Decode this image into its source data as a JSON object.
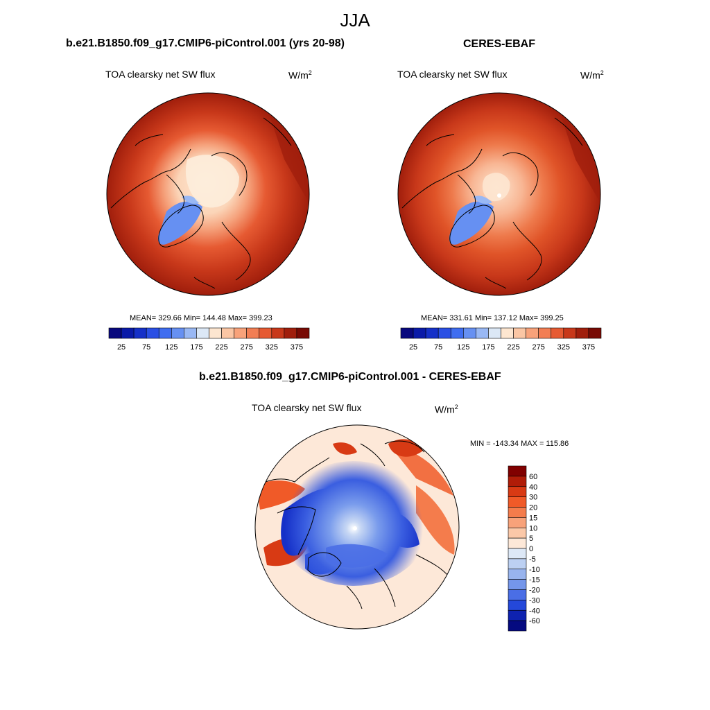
{
  "title": "JJA",
  "panels": [
    {
      "title": "b.e21.B1850.f09_g17.CMIP6-piControl.001 (yrs 20-98)",
      "variable": "TOA clearsky net SW flux",
      "units_base": "W/m",
      "units_exp": "2",
      "stats": "MEAN= 329.66  Min= 144.48  Max= 399.23"
    },
    {
      "title": "CERES-EBAF",
      "variable": "TOA clearsky net SW flux",
      "units_base": "W/m",
      "units_exp": "2",
      "stats": "MEAN= 331.61  Min= 137.12  Max= 399.25"
    },
    {
      "title": "b.e21.B1850.f09_g17.CMIP6-piControl.001 - CERES-EBAF",
      "variable": "TOA clearsky net SW flux",
      "units_base": "W/m",
      "units_exp": "2",
      "stats": "MIN = -143.34 MAX = 115.86"
    }
  ],
  "chart_data": [
    {
      "type": "heatmap",
      "projection": "north polar stereographic",
      "title": "b.e21.B1850.f09_g17.CMIP6-piControl.001 (yrs 20-98)",
      "variable": "TOA clearsky net SW flux",
      "units": "W/m2",
      "mean": 329.66,
      "min": 144.48,
      "max": 399.23,
      "colorbar_levels": [
        25,
        50,
        75,
        100,
        125,
        150,
        175,
        200,
        225,
        250,
        275,
        300,
        325,
        350,
        375
      ],
      "colorbar_tick_labels": [
        "25",
        "75",
        "125",
        "175",
        "225",
        "275",
        "325",
        "375"
      ],
      "colorbar_colors": [
        "#08087e",
        "#0a1aa8",
        "#1530c8",
        "#2a4fe4",
        "#3f6df0",
        "#6690f2",
        "#99b8f4",
        "#dce8f6",
        "#fde6d0",
        "#fbc6a4",
        "#f8a27a",
        "#f27e54",
        "#e65a32",
        "#c8381a",
        "#a01e0c",
        "#780a04"
      ],
      "colorbar_orientation": "horizontal"
    },
    {
      "type": "heatmap",
      "projection": "north polar stereographic",
      "title": "CERES-EBAF",
      "variable": "TOA clearsky net SW flux",
      "units": "W/m2",
      "mean": 331.61,
      "min": 137.12,
      "max": 399.25,
      "colorbar_levels": [
        25,
        50,
        75,
        100,
        125,
        150,
        175,
        200,
        225,
        250,
        275,
        300,
        325,
        350,
        375
      ],
      "colorbar_tick_labels": [
        "25",
        "75",
        "125",
        "175",
        "225",
        "275",
        "325",
        "375"
      ],
      "colorbar_colors": [
        "#08087e",
        "#0a1aa8",
        "#1530c8",
        "#2a4fe4",
        "#3f6df0",
        "#6690f2",
        "#99b8f4",
        "#dce8f6",
        "#fde6d0",
        "#fbc6a4",
        "#f8a27a",
        "#f27e54",
        "#e65a32",
        "#c8381a",
        "#a01e0c",
        "#780a04"
      ],
      "colorbar_orientation": "horizontal"
    },
    {
      "type": "heatmap",
      "projection": "north polar stereographic",
      "title": "b.e21.B1850.f09_g17.CMIP6-piControl.001 - CERES-EBAF",
      "variable": "TOA clearsky net SW flux",
      "units": "W/m2",
      "min": -143.34,
      "max": 115.86,
      "colorbar_levels": [
        60,
        40,
        30,
        20,
        15,
        10,
        5,
        0,
        -5,
        -10,
        -15,
        -20,
        -30,
        -40,
        -60
      ],
      "colorbar_tick_labels": [
        "60",
        "40",
        "30",
        "20",
        "15",
        "10",
        "5",
        "0",
        "-5",
        "-10",
        "-15",
        "-20",
        "-30",
        "-40",
        "-60"
      ],
      "colorbar_colors": [
        "#800000",
        "#b01c08",
        "#d83a14",
        "#f05a28",
        "#f47c4c",
        "#f8a27a",
        "#fbc8a8",
        "#fde8d8",
        "#dde8f6",
        "#bcd0f2",
        "#98b4ee",
        "#7496ea",
        "#4a6ee6",
        "#2448da",
        "#0e22b0",
        "#050a80"
      ],
      "colorbar_orientation": "vertical"
    }
  ]
}
